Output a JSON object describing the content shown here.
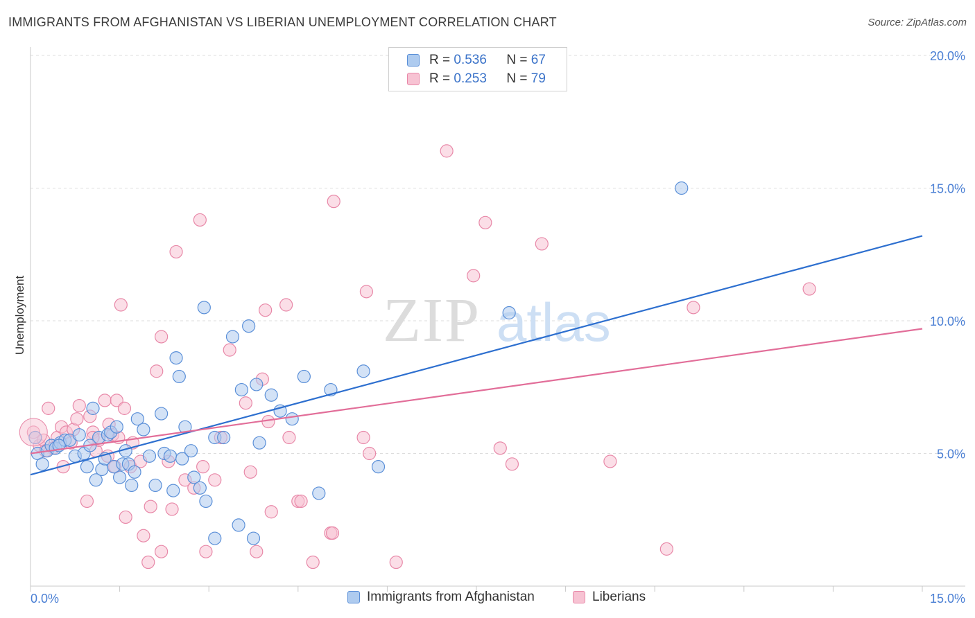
{
  "header": {
    "title": "IMMIGRANTS FROM AFGHANISTAN VS LIBERIAN UNEMPLOYMENT CORRELATION CHART",
    "source": "Source: ZipAtlas.com"
  },
  "watermark": {
    "zip": "ZIP",
    "atlas": "atlas"
  },
  "colors": {
    "blue_fill": "#aecbef",
    "blue_stroke": "#5a8fd8",
    "blue_line": "#2d6fcf",
    "pink_fill": "#f7c3d3",
    "pink_stroke": "#e888a8",
    "pink_line": "#e26e99",
    "tick_text": "#4a7fd4",
    "grid": "#dddddd"
  },
  "legend": {
    "rows": [
      {
        "r_label": "R = ",
        "r_value": "0.536",
        "n_label": "N = ",
        "n_value": "67"
      },
      {
        "r_label": "R = ",
        "r_value": "0.253",
        "n_label": "N = ",
        "n_value": "79"
      }
    ]
  },
  "bottom_legend": {
    "series1": "Immigrants from Afghanistan",
    "series2": "Liberians"
  },
  "chart_data": {
    "type": "scatter",
    "title": "IMMIGRANTS FROM AFGHANISTAN VS LIBERIAN UNEMPLOYMENT CORRELATION CHART",
    "xlabel": "",
    "ylabel": "Unemployment",
    "xlim": [
      0,
      15
    ],
    "ylim": [
      0,
      20
    ],
    "x_tick_labels": [
      "0.0%",
      "15.0%"
    ],
    "y_ticks": [
      5,
      10,
      15,
      20
    ],
    "y_tick_labels": [
      "5.0%",
      "10.0%",
      "15.0%",
      "20.0%"
    ],
    "grid": true,
    "legend_position": "top-center",
    "series": [
      {
        "name": "Immigrants from Afghanistan",
        "r": 0.536,
        "n": 67,
        "trendline": {
          "x": [
            0,
            15
          ],
          "y": [
            4.2,
            13.2
          ]
        },
        "points": [
          {
            "x": 0.12,
            "y": 5.0
          },
          {
            "x": 0.2,
            "y": 4.6
          },
          {
            "x": 0.28,
            "y": 5.1
          },
          {
            "x": 0.35,
            "y": 5.3
          },
          {
            "x": 0.42,
            "y": 5.2
          },
          {
            "x": 0.5,
            "y": 5.4
          },
          {
            "x": 0.58,
            "y": 5.5
          },
          {
            "x": 0.66,
            "y": 5.5
          },
          {
            "x": 0.75,
            "y": 4.9
          },
          {
            "x": 0.82,
            "y": 5.7
          },
          {
            "x": 0.9,
            "y": 5.0
          },
          {
            "x": 0.95,
            "y": 4.5
          },
          {
            "x": 1.0,
            "y": 5.3
          },
          {
            "x": 1.05,
            "y": 6.7
          },
          {
            "x": 1.1,
            "y": 4.0
          },
          {
            "x": 1.15,
            "y": 5.6
          },
          {
            "x": 1.2,
            "y": 4.4
          },
          {
            "x": 1.25,
            "y": 4.8
          },
          {
            "x": 1.3,
            "y": 5.7
          },
          {
            "x": 1.35,
            "y": 5.8
          },
          {
            "x": 1.4,
            "y": 4.5
          },
          {
            "x": 1.45,
            "y": 6.0
          },
          {
            "x": 1.5,
            "y": 4.1
          },
          {
            "x": 1.55,
            "y": 4.6
          },
          {
            "x": 1.6,
            "y": 5.1
          },
          {
            "x": 1.65,
            "y": 4.6
          },
          {
            "x": 1.7,
            "y": 3.8
          },
          {
            "x": 1.75,
            "y": 4.3
          },
          {
            "x": 1.8,
            "y": 6.3
          },
          {
            "x": 1.9,
            "y": 5.9
          },
          {
            "x": 2.0,
            "y": 4.9
          },
          {
            "x": 2.1,
            "y": 3.8
          },
          {
            "x": 2.2,
            "y": 6.5
          },
          {
            "x": 2.25,
            "y": 5.0
          },
          {
            "x": 2.35,
            "y": 4.9
          },
          {
            "x": 2.4,
            "y": 3.6
          },
          {
            "x": 2.45,
            "y": 8.6
          },
          {
            "x": 2.5,
            "y": 7.9
          },
          {
            "x": 2.55,
            "y": 4.8
          },
          {
            "x": 2.6,
            "y": 6.0
          },
          {
            "x": 2.7,
            "y": 5.1
          },
          {
            "x": 2.75,
            "y": 4.1
          },
          {
            "x": 2.85,
            "y": 3.7
          },
          {
            "x": 2.92,
            "y": 10.5
          },
          {
            "x": 2.95,
            "y": 3.2
          },
          {
            "x": 3.1,
            "y": 5.6
          },
          {
            "x": 3.1,
            "y": 1.8
          },
          {
            "x": 3.25,
            "y": 5.6
          },
          {
            "x": 3.4,
            "y": 9.4
          },
          {
            "x": 3.5,
            "y": 2.3
          },
          {
            "x": 3.55,
            "y": 7.4
          },
          {
            "x": 3.67,
            "y": 9.8
          },
          {
            "x": 3.75,
            "y": 1.8
          },
          {
            "x": 3.8,
            "y": 7.6
          },
          {
            "x": 3.85,
            "y": 5.4
          },
          {
            "x": 4.05,
            "y": 7.2
          },
          {
            "x": 4.2,
            "y": 6.6
          },
          {
            "x": 4.4,
            "y": 6.3
          },
          {
            "x": 4.6,
            "y": 7.9
          },
          {
            "x": 4.85,
            "y": 3.5
          },
          {
            "x": 5.05,
            "y": 7.4
          },
          {
            "x": 5.6,
            "y": 8.1
          },
          {
            "x": 5.85,
            "y": 4.5
          },
          {
            "x": 8.05,
            "y": 10.3
          },
          {
            "x": 10.95,
            "y": 15.0
          },
          {
            "x": 0.08,
            "y": 5.6
          },
          {
            "x": 0.48,
            "y": 5.3
          }
        ]
      },
      {
        "name": "Liberians",
        "r": 0.253,
        "n": 79,
        "trendline": {
          "x": [
            0,
            15
          ],
          "y": [
            5.0,
            9.7
          ]
        },
        "points": [
          {
            "x": 0.05,
            "y": 5.8
          },
          {
            "x": 0.15,
            "y": 5.3
          },
          {
            "x": 0.22,
            "y": 5.5
          },
          {
            "x": 0.3,
            "y": 6.7
          },
          {
            "x": 0.38,
            "y": 5.2
          },
          {
            "x": 0.45,
            "y": 5.6
          },
          {
            "x": 0.52,
            "y": 6.0
          },
          {
            "x": 0.55,
            "y": 4.5
          },
          {
            "x": 0.6,
            "y": 5.8
          },
          {
            "x": 0.68,
            "y": 5.4
          },
          {
            "x": 0.72,
            "y": 5.9
          },
          {
            "x": 0.78,
            "y": 6.3
          },
          {
            "x": 0.82,
            "y": 6.8
          },
          {
            "x": 0.95,
            "y": 3.2
          },
          {
            "x": 1.0,
            "y": 6.4
          },
          {
            "x": 1.05,
            "y": 5.8
          },
          {
            "x": 1.1,
            "y": 5.1
          },
          {
            "x": 1.15,
            "y": 5.5
          },
          {
            "x": 1.25,
            "y": 7.0
          },
          {
            "x": 1.3,
            "y": 4.9
          },
          {
            "x": 1.32,
            "y": 6.1
          },
          {
            "x": 1.38,
            "y": 5.7
          },
          {
            "x": 1.42,
            "y": 4.5
          },
          {
            "x": 1.45,
            "y": 7.0
          },
          {
            "x": 1.48,
            "y": 5.6
          },
          {
            "x": 1.52,
            "y": 10.6
          },
          {
            "x": 1.58,
            "y": 6.7
          },
          {
            "x": 1.6,
            "y": 2.6
          },
          {
            "x": 1.68,
            "y": 4.5
          },
          {
            "x": 1.72,
            "y": 5.4
          },
          {
            "x": 1.85,
            "y": 4.7
          },
          {
            "x": 1.9,
            "y": 1.9
          },
          {
            "x": 1.98,
            "y": 0.9
          },
          {
            "x": 2.02,
            "y": 3.0
          },
          {
            "x": 2.12,
            "y": 8.1
          },
          {
            "x": 2.2,
            "y": 1.3
          },
          {
            "x": 2.2,
            "y": 9.4
          },
          {
            "x": 2.32,
            "y": 4.7
          },
          {
            "x": 2.38,
            "y": 2.9
          },
          {
            "x": 2.45,
            "y": 12.6
          },
          {
            "x": 2.6,
            "y": 4.0
          },
          {
            "x": 2.75,
            "y": 3.7
          },
          {
            "x": 2.85,
            "y": 13.8
          },
          {
            "x": 2.9,
            "y": 4.5
          },
          {
            "x": 2.95,
            "y": 1.3
          },
          {
            "x": 3.1,
            "y": 4.0
          },
          {
            "x": 3.2,
            "y": 5.6
          },
          {
            "x": 3.35,
            "y": 8.9
          },
          {
            "x": 3.62,
            "y": 6.9
          },
          {
            "x": 3.7,
            "y": 4.3
          },
          {
            "x": 3.8,
            "y": 1.3
          },
          {
            "x": 3.9,
            "y": 7.8
          },
          {
            "x": 3.95,
            "y": 10.4
          },
          {
            "x": 4.0,
            "y": 6.2
          },
          {
            "x": 4.05,
            "y": 2.8
          },
          {
            "x": 4.3,
            "y": 10.6
          },
          {
            "x": 4.35,
            "y": 5.6
          },
          {
            "x": 4.5,
            "y": 3.2
          },
          {
            "x": 4.55,
            "y": 3.2
          },
          {
            "x": 4.75,
            "y": 0.9
          },
          {
            "x": 5.05,
            "y": 2.0
          },
          {
            "x": 5.08,
            "y": 2.0
          },
          {
            "x": 5.1,
            "y": 14.5
          },
          {
            "x": 5.6,
            "y": 5.6
          },
          {
            "x": 5.65,
            "y": 11.1
          },
          {
            "x": 5.7,
            "y": 5.0
          },
          {
            "x": 6.15,
            "y": 0.9
          },
          {
            "x": 7.0,
            "y": 16.4
          },
          {
            "x": 7.45,
            "y": 11.7
          },
          {
            "x": 7.65,
            "y": 13.7
          },
          {
            "x": 7.9,
            "y": 5.2
          },
          {
            "x": 8.1,
            "y": 4.6
          },
          {
            "x": 8.6,
            "y": 12.9
          },
          {
            "x": 9.75,
            "y": 4.7
          },
          {
            "x": 10.7,
            "y": 1.4
          },
          {
            "x": 11.15,
            "y": 10.5
          },
          {
            "x": 13.1,
            "y": 11.2
          },
          {
            "x": 0.25,
            "y": 5.1
          },
          {
            "x": 1.05,
            "y": 5.6
          }
        ]
      }
    ]
  }
}
